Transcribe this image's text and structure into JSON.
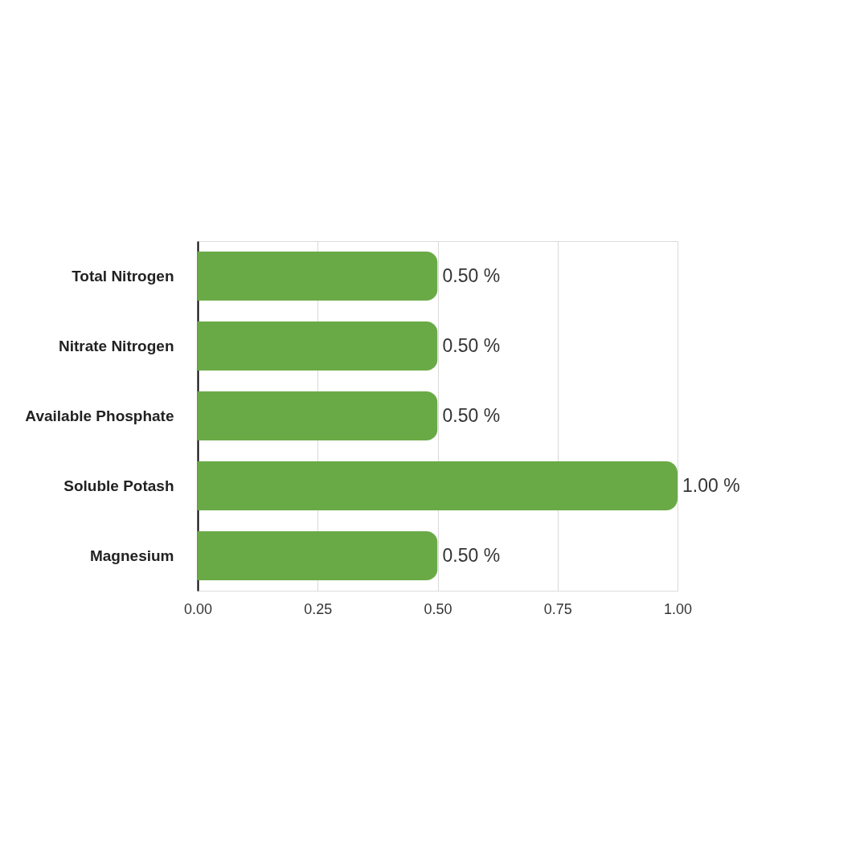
{
  "chart_data": {
    "type": "bar",
    "orientation": "horizontal",
    "categories": [
      "Total Nitrogen",
      "Nitrate Nitrogen",
      "Available Phosphate",
      "Soluble Potash",
      "Magnesium"
    ],
    "values": [
      0.5,
      0.5,
      0.5,
      1.0,
      0.5
    ],
    "value_labels": [
      "0.50 %",
      "0.50 %",
      "0.50 %",
      "1.00 %",
      "0.50 %"
    ],
    "color": "#6aaa46",
    "xlim": [
      0,
      1
    ],
    "xticks": [
      {
        "value": 0,
        "label": "0.00"
      },
      {
        "value": 0.25,
        "label": "0.25"
      },
      {
        "value": 0.5,
        "label": "0.50"
      },
      {
        "value": 0.75,
        "label": "0.75"
      },
      {
        "value": 1,
        "label": "1.00"
      }
    ],
    "grid": "x"
  }
}
